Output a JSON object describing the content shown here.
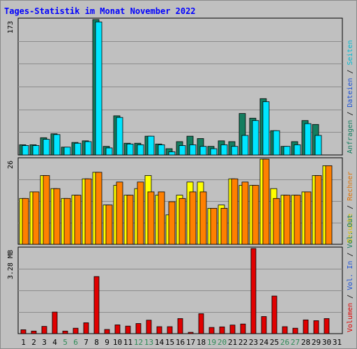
{
  "chart_data": {
    "type": "bar",
    "title": "Tages-Statistik im Monat November 2022",
    "colors": {
      "background": "#c0c0c0",
      "title": "#0000ff",
      "anfragen": "#147d5f",
      "dateien": "#00ccff",
      "seiten": "#00e5ff",
      "besuche": "#ffff00",
      "rechner": "#ff8000",
      "volumen": "#e00000",
      "weekend_day": "#2e8b57",
      "day": "#000000"
    },
    "categories": [
      "1",
      "2",
      "3",
      "4",
      "5",
      "6",
      "7",
      "8",
      "9",
      "10",
      "11",
      "12",
      "13",
      "14",
      "15",
      "16",
      "17",
      "18",
      "19",
      "20",
      "21",
      "22",
      "23",
      "24",
      "25",
      "26",
      "27",
      "28",
      "29",
      "30",
      "31"
    ],
    "weekend_days": [
      "5",
      "6",
      "12",
      "13",
      "19",
      "20",
      "26",
      "27"
    ],
    "panels": [
      {
        "id": "hits",
        "ylim": [
          0,
          173
        ],
        "ytick_label": "173",
        "right_labels": [
          {
            "text": "Anfragen",
            "color": "#147d5f"
          },
          {
            "text": "Dateien",
            "color": "#1a4fd6"
          },
          {
            "text": "Seiten",
            "color": "#00bcd4"
          }
        ],
        "series": [
          {
            "name": "Anfragen",
            "values": [
              13,
              13,
              22,
              27,
              10,
              16,
              18,
              173,
              11,
              50,
              15,
              15,
              24,
              14,
              8,
              17,
              24,
              21,
              11,
              18,
              17,
              53,
              47,
              72,
              31,
              11,
              17,
              44,
              39,
              0,
              0
            ]
          },
          {
            "name": "Dateien",
            "values": [
              12,
              12,
              20,
              26,
              10,
              15,
              17,
              170,
              9,
              48,
              14,
              13,
              24,
              13,
              4,
              12,
              13,
              11,
              8,
              13,
              11,
              25,
              44,
              68,
              31,
              11,
              13,
              40,
              25,
              0,
              0
            ]
          }
        ]
      },
      {
        "id": "visits",
        "ylim": [
          0,
          26
        ],
        "ytick_label": "26",
        "right_labels": [
          {
            "text": "Besuche",
            "color": "#d4c200"
          },
          {
            "text": "Rechner",
            "color": "#e07000"
          }
        ],
        "series": [
          {
            "name": "Besuche",
            "values": [
              14,
              16,
              21,
              17,
              14,
              15,
              20,
              22,
              12,
              18,
              15,
              17,
              21,
              15,
              9,
              15,
              19,
              19,
              11,
              12,
              20,
              18,
              18,
              26,
              17,
              15,
              15,
              16,
              21,
              24,
              0
            ]
          },
          {
            "name": "Rechner",
            "values": [
              14,
              16,
              21,
              17,
              14,
              15,
              20,
              22,
              12,
              19,
              15,
              19,
              16,
              16,
              13,
              14,
              16,
              16,
              11,
              11,
              20,
              19,
              18,
              26,
              14,
              15,
              15,
              16,
              21,
              24,
              0
            ]
          }
        ]
      },
      {
        "id": "volume",
        "ylim": [
          0,
          3.28
        ],
        "ytick_label": "3.28 MB",
        "right_labels": [
          {
            "text": "Volumen",
            "color": "#e00000"
          },
          {
            "text": " / ",
            "color": "#000000"
          },
          {
            "text": "Vol. In",
            "color": "#1a4fd6"
          },
          {
            "text": " / ",
            "color": "#000000"
          },
          {
            "text": "Vol. Out",
            "color": "#147d5f"
          }
        ],
        "series": [
          {
            "name": "Volumen",
            "values": [
              0.15,
              0.1,
              0.28,
              0.83,
              0.1,
              0.21,
              0.42,
              2.2,
              0.16,
              0.34,
              0.29,
              0.39,
              0.52,
              0.27,
              0.27,
              0.58,
              0.05,
              0.77,
              0.24,
              0.26,
              0.33,
              0.37,
              3.28,
              0.66,
              1.45,
              0.27,
              0.21,
              0.53,
              0.5,
              0.58,
              0
            ]
          }
        ]
      }
    ]
  }
}
